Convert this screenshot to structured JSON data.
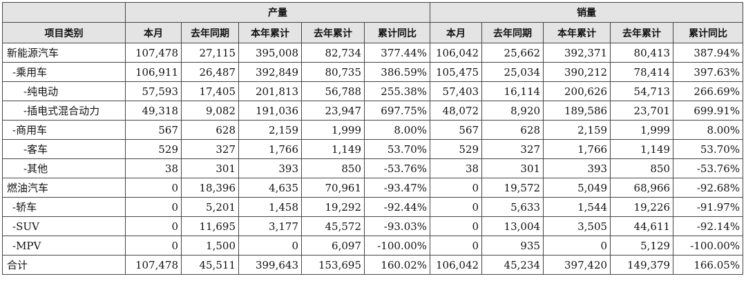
{
  "table": {
    "groups": [
      {
        "label": "产量",
        "span": 5
      },
      {
        "label": "销量",
        "span": 5
      }
    ],
    "columns": [
      "项目类别",
      "本月",
      "去年同期",
      "本年累计",
      "去年累计",
      "累计同比",
      "本月",
      "去年同期",
      "本年累计",
      "去年累计",
      "累计同比"
    ],
    "rows": [
      {
        "label": "新能源汽车",
        "values": [
          "107,478",
          "27,115",
          "395,008",
          "82,734",
          "377.44%",
          "106,042",
          "25,662",
          "392,371",
          "80,413",
          "387.94%"
        ]
      },
      {
        "label": "-乘用车",
        "values": [
          "106,911",
          "26,487",
          "392,849",
          "80,735",
          "386.59%",
          "105,475",
          "25,034",
          "390,212",
          "78,414",
          "397.63%"
        ]
      },
      {
        "label": "-纯电动",
        "values": [
          "57,593",
          "17,405",
          "201,813",
          "56,788",
          "255.38%",
          "57,403",
          "16,114",
          "200,626",
          "54,713",
          "266.69%"
        ]
      },
      {
        "label": "-插电式混合动力",
        "values": [
          "49,318",
          "9,082",
          "191,036",
          "23,947",
          "697.75%",
          "48,072",
          "8,920",
          "189,586",
          "23,701",
          "699.91%"
        ]
      },
      {
        "label": "-商用车",
        "values": [
          "567",
          "628",
          "2,159",
          "1,999",
          "8.00%",
          "567",
          "628",
          "2,159",
          "1,999",
          "8.00%"
        ]
      },
      {
        "label": "-客车",
        "values": [
          "529",
          "327",
          "1,766",
          "1,149",
          "53.70%",
          "529",
          "327",
          "1,766",
          "1,149",
          "53.70%"
        ]
      },
      {
        "label": "-其他",
        "values": [
          "38",
          "301",
          "393",
          "850",
          "-53.76%",
          "38",
          "301",
          "393",
          "850",
          "-53.76%"
        ]
      },
      {
        "label": "燃油汽车",
        "values": [
          "0",
          "18,396",
          "4,635",
          "70,961",
          "-93.47%",
          "0",
          "19,572",
          "5,049",
          "68,966",
          "-92.68%"
        ]
      },
      {
        "label": "-轿车",
        "values": [
          "0",
          "5,201",
          "1,458",
          "19,292",
          "-92.44%",
          "0",
          "5,633",
          "1,544",
          "19,226",
          "-91.97%"
        ]
      },
      {
        "label": "-SUV",
        "values": [
          "0",
          "11,695",
          "3,177",
          "45,572",
          "-93.03%",
          "0",
          "13,004",
          "3,505",
          "44,611",
          "-92.14%"
        ]
      },
      {
        "label": "-MPV",
        "values": [
          "0",
          "1,500",
          "0",
          "6,097",
          "-100.00%",
          "0",
          "935",
          "0",
          "5,129",
          "-100.00%"
        ]
      },
      {
        "label": "合计",
        "values": [
          "107,478",
          "45,511",
          "399,643",
          "153,695",
          "160.02%",
          "106,042",
          "45,234",
          "397,420",
          "149,379",
          "166.05%"
        ]
      }
    ],
    "indent": [
      0,
      1,
      2,
      2,
      1,
      2,
      2,
      0,
      1,
      1,
      1,
      0
    ]
  }
}
